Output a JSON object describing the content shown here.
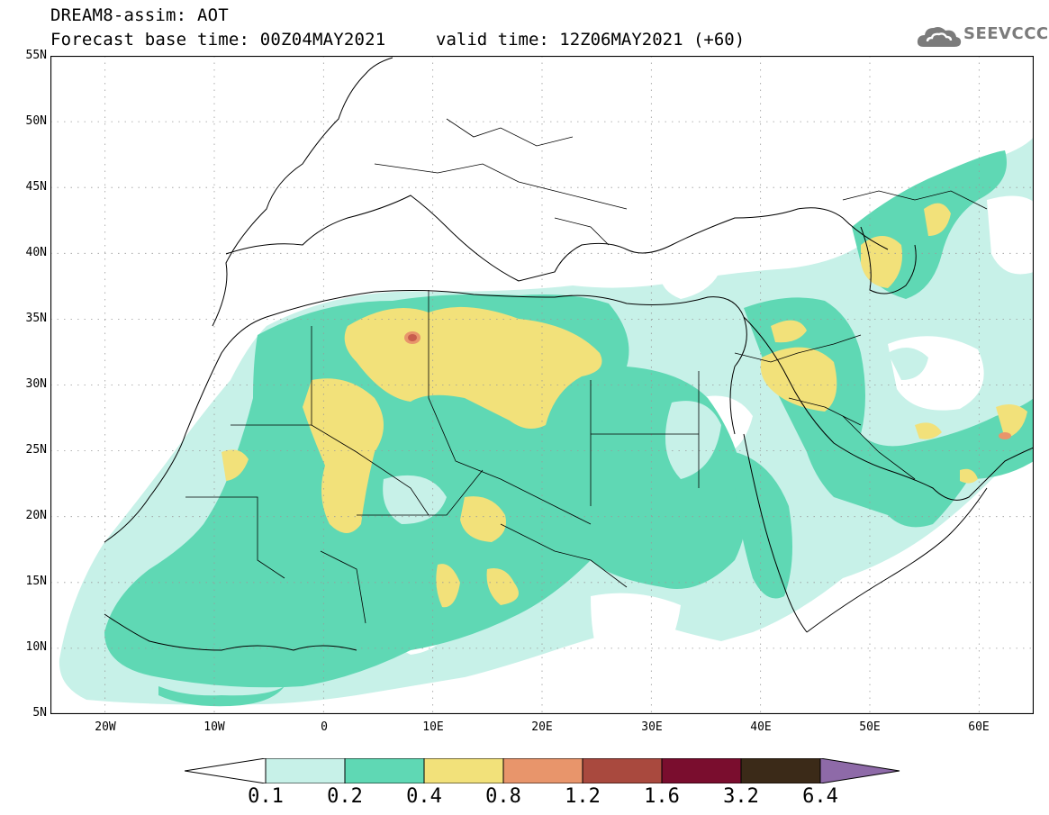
{
  "header": {
    "title": "DREAM8-assim: AOT",
    "base_time": "Forecast base time: 00Z04MAY2021",
    "valid_time": "valid time: 12Z06MAY2021 (+60)"
  },
  "logo": {
    "text": "SEEVCCC",
    "icon": "cloud-icon",
    "color": "#7b7b7b"
  },
  "map": {
    "projection": "lat-lon",
    "lon_range": [
      -25,
      65
    ],
    "lat_range": [
      5,
      55
    ],
    "lat_ticks": [
      "55N",
      "50N",
      "45N",
      "40N",
      "35N",
      "30N",
      "25N",
      "20N",
      "15N",
      "10N",
      "5N"
    ],
    "lon_ticks": [
      "20W",
      "10W",
      "0",
      "10E",
      "20E",
      "30E",
      "40E",
      "50E",
      "60E"
    ],
    "field": "Aerosol Optical Thickness (AOT)"
  },
  "colorbar": {
    "levels": [
      "0.1",
      "0.2",
      "0.4",
      "0.8",
      "1.2",
      "1.6",
      "3.2",
      "6.4"
    ],
    "colors": [
      "#ffffff",
      "#c7f1e8",
      "#5fd8b4",
      "#f2e17a",
      "#e8956b",
      "#a9493e",
      "#7a0d2e",
      "#3b2a18",
      "#8e6aa8"
    ]
  }
}
